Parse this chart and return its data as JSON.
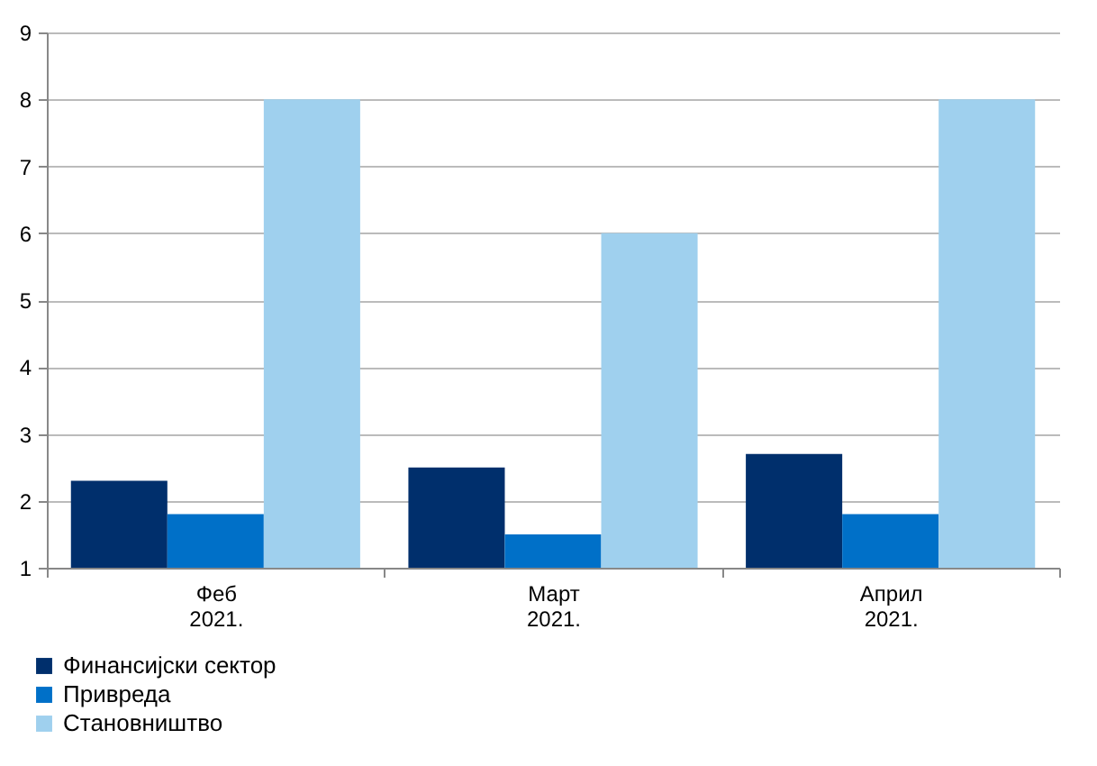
{
  "chart_data": {
    "type": "bar",
    "categories": [
      "Феб 2021.",
      "Март 2021.",
      "Април 2021."
    ],
    "series": [
      {
        "name": "Финансијски сектор",
        "color": "#002f6c",
        "values": [
          2.3,
          2.5,
          2.7
        ]
      },
      {
        "name": "Привреда",
        "color": "#0070c8",
        "values": [
          1.8,
          1.5,
          1.8
        ]
      },
      {
        "name": "Становништво",
        "color": "#9fd0ee",
        "values": [
          8,
          6,
          8
        ]
      }
    ],
    "ylim": [
      1,
      9
    ],
    "yticks": [
      1,
      2,
      3,
      4,
      5,
      6,
      7,
      8,
      9
    ],
    "grid": "y",
    "legend": "bottom left"
  }
}
